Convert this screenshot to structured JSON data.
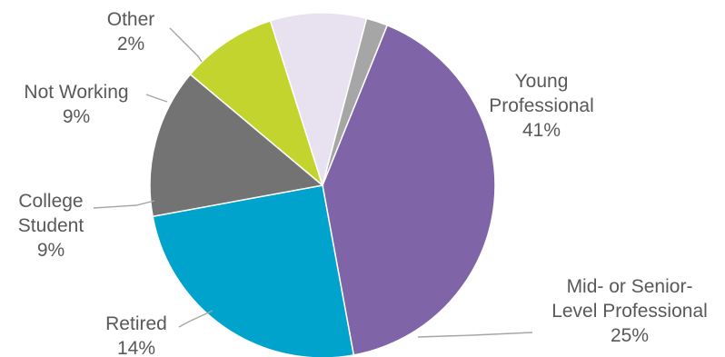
{
  "chart_data": {
    "type": "pie",
    "title": "",
    "start_angle_deg": 22,
    "direction": "clockwise",
    "legend": "none",
    "slices": [
      {
        "label": [
          "Young",
          "Professional"
        ],
        "value": 41,
        "value_label": "41%",
        "color": "#8064a8"
      },
      {
        "label": [
          "Mid- or Senior-",
          "Level Professional"
        ],
        "value": 25,
        "value_label": "25%",
        "color": "#00a3cc"
      },
      {
        "label": [
          "Retired"
        ],
        "value": 14,
        "value_label": "14%",
        "color": "#737373"
      },
      {
        "label": [
          "College",
          "Student"
        ],
        "value": 9,
        "value_label": "9%",
        "color": "#c4d42f"
      },
      {
        "label": [
          "Not Working"
        ],
        "value": 9,
        "value_label": "9%",
        "color": "#e8e2f0"
      },
      {
        "label": [
          "Other"
        ],
        "value": 2,
        "value_label": "2%",
        "color": "#a6a6a6"
      }
    ]
  }
}
